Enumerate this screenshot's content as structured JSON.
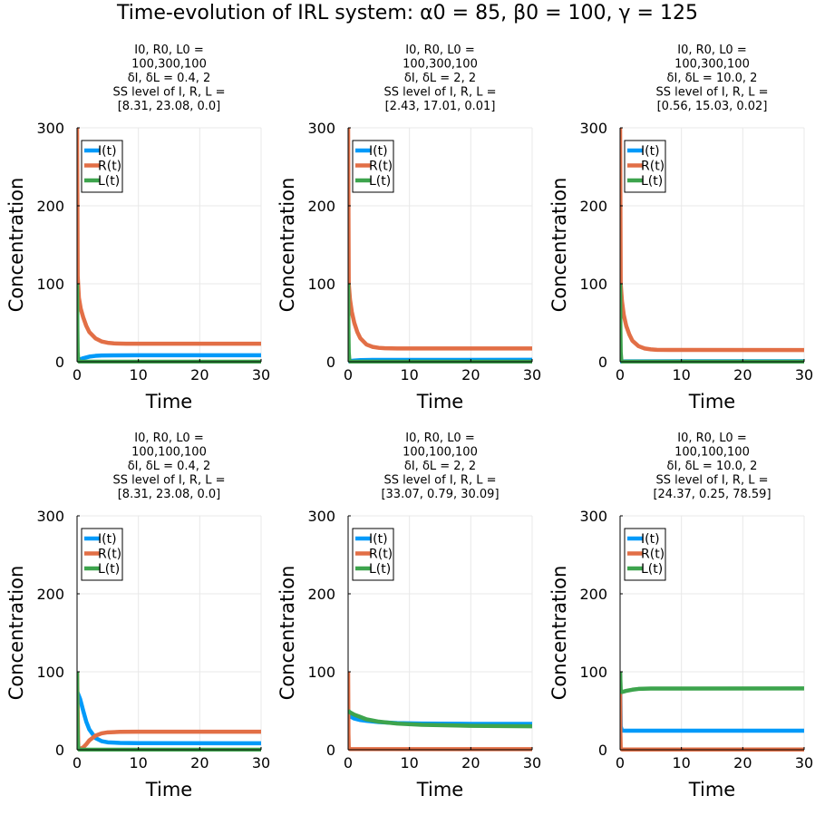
{
  "figure": {
    "title": "Time-evolution of IRL system: α0 = 85, β0 = 100, γ = 125"
  },
  "chart_data": [
    {
      "type": "line",
      "title_lines": [
        "I0, R0, L0 =",
        "100,300,100",
        "δI, δL = 0.4, 2",
        "SS level of I, R, L =",
        "[8.31, 23.08, 0.0]"
      ],
      "xlabel": "Time",
      "ylabel": "Concentration",
      "xlim": [
        0,
        30
      ],
      "ylim": [
        0,
        300
      ],
      "xticks": [
        0,
        10,
        20,
        30
      ],
      "yticks": [
        0,
        100,
        200,
        300
      ],
      "grid": true,
      "legend_position": "top-left",
      "series": [
        {
          "name": "I(t)",
          "color": "#009af9",
          "x": [
            0,
            0.2,
            0.5,
            1,
            2,
            3,
            4,
            6,
            10,
            30
          ],
          "y": [
            0,
            1.5,
            3,
            4.5,
            6.5,
            7.5,
            8,
            8.2,
            8.3,
            8.31
          ]
        },
        {
          "name": "R(t)",
          "color": "#e26f46",
          "x": [
            0,
            0.1,
            0.3,
            0.6,
            1,
            1.5,
            2,
            3,
            4,
            5,
            6,
            8,
            30
          ],
          "y": [
            300,
            110,
            82,
            68,
            57,
            46,
            38,
            30,
            26,
            24.3,
            23.5,
            23.1,
            23.08
          ]
        },
        {
          "name": "L(t)",
          "color": "#3da44d",
          "x": [
            0,
            0.05,
            0.1,
            0.2,
            0.4,
            30
          ],
          "y": [
            100,
            40,
            12,
            2,
            0,
            0
          ]
        }
      ]
    },
    {
      "type": "line",
      "title_lines": [
        "I0, R0, L0 =",
        "100,300,100",
        "δI, δL = 2, 2",
        "SS level of I, R, L =",
        "[2.43, 17.01, 0.01]"
      ],
      "xlabel": "Time",
      "ylabel": "Concentration",
      "xlim": [
        0,
        30
      ],
      "ylim": [
        0,
        300
      ],
      "xticks": [
        0,
        10,
        20,
        30
      ],
      "yticks": [
        0,
        100,
        200,
        300
      ],
      "grid": true,
      "legend_position": "top-left",
      "series": [
        {
          "name": "I(t)",
          "color": "#009af9",
          "x": [
            0,
            0.2,
            0.5,
            1,
            2,
            4,
            30
          ],
          "y": [
            0,
            0.5,
            1,
            1.5,
            2,
            2.3,
            2.43
          ]
        },
        {
          "name": "R(t)",
          "color": "#e26f46",
          "x": [
            0,
            0.1,
            0.3,
            0.6,
            1,
            1.5,
            2,
            3,
            4,
            5,
            6,
            8,
            30
          ],
          "y": [
            300,
            100,
            80,
            64,
            50,
            38,
            30,
            22,
            19,
            17.8,
            17.3,
            17.05,
            17.01
          ]
        },
        {
          "name": "L(t)",
          "color": "#3da44d",
          "x": [
            0,
            0.05,
            0.1,
            0.2,
            0.4,
            30
          ],
          "y": [
            100,
            40,
            12,
            2,
            0.01,
            0.01
          ]
        }
      ]
    },
    {
      "type": "line",
      "title_lines": [
        "I0, R0, L0 =",
        "100,300,100",
        "δI, δL = 10.0, 2",
        "SS level of I, R, L =",
        "[0.56, 15.03, 0.02]"
      ],
      "xlabel": "Time",
      "ylabel": "Concentration",
      "xlim": [
        0,
        30
      ],
      "ylim": [
        0,
        300
      ],
      "xticks": [
        0,
        10,
        20,
        30
      ],
      "yticks": [
        0,
        100,
        200,
        300
      ],
      "grid": true,
      "legend_position": "top-left",
      "series": [
        {
          "name": "I(t)",
          "color": "#009af9",
          "x": [
            0,
            0.3,
            1,
            30
          ],
          "y": [
            0,
            0.3,
            0.5,
            0.56
          ]
        },
        {
          "name": "R(t)",
          "color": "#e26f46",
          "x": [
            0,
            0.1,
            0.3,
            0.6,
            1,
            1.5,
            2,
            3,
            4,
            5,
            6,
            8,
            30
          ],
          "y": [
            300,
            100,
            78,
            60,
            46,
            35,
            27,
            20,
            17,
            15.8,
            15.3,
            15.05,
            15.03
          ]
        },
        {
          "name": "L(t)",
          "color": "#3da44d",
          "x": [
            0,
            0.05,
            0.1,
            0.2,
            0.4,
            30
          ],
          "y": [
            100,
            40,
            12,
            2,
            0.02,
            0.02
          ]
        }
      ]
    },
    {
      "type": "line",
      "title_lines": [
        "I0, R0, L0 =",
        "100,100,100",
        "δI, δL = 0.4, 2",
        "SS level of I, R, L =",
        "[8.31, 23.08, 0.0]"
      ],
      "xlabel": "Time",
      "ylabel": "Concentration",
      "xlim": [
        0,
        30
      ],
      "ylim": [
        0,
        300
      ],
      "xticks": [
        0,
        10,
        20,
        30
      ],
      "yticks": [
        0,
        100,
        200,
        300
      ],
      "grid": true,
      "legend_position": "top-left",
      "series": [
        {
          "name": "I(t)",
          "color": "#009af9",
          "x": [
            0,
            0.5,
            1,
            1.5,
            2,
            3,
            4,
            5,
            7,
            10,
            30
          ],
          "y": [
            75,
            65,
            50,
            36,
            26,
            15,
            11,
            9.5,
            8.7,
            8.4,
            8.31
          ]
        },
        {
          "name": "R(t)",
          "color": "#e26f46",
          "x": [
            0,
            0.2,
            0.5,
            1,
            1.5,
            2,
            3,
            4,
            5,
            7,
            10,
            30
          ],
          "y": [
            100,
            2,
            1,
            3,
            7,
            12,
            18,
            21,
            22.3,
            22.9,
            23.05,
            23.08
          ]
        },
        {
          "name": "L(t)",
          "color": "#3da44d",
          "x": [
            0,
            0.05,
            0.1,
            0.2,
            0.4,
            30
          ],
          "y": [
            100,
            40,
            12,
            2,
            0,
            0
          ]
        }
      ]
    },
    {
      "type": "line",
      "title_lines": [
        "I0, R0, L0 =",
        "100,100,100",
        "δI, δL = 2, 2",
        "SS level of I, R, L =",
        "[33.07, 0.79, 30.09]"
      ],
      "xlabel": "Time",
      "ylabel": "Concentration",
      "xlim": [
        0,
        30
      ],
      "ylim": [
        0,
        300
      ],
      "xticks": [
        0,
        10,
        20,
        30
      ],
      "yticks": [
        0,
        100,
        200,
        300
      ],
      "grid": true,
      "legend_position": "top-left",
      "series": [
        {
          "name": "I(t)",
          "color": "#009af9",
          "x": [
            0,
            0.3,
            1,
            2,
            3,
            5,
            8,
            12,
            20,
            30
          ],
          "y": [
            47,
            43,
            40,
            38,
            37,
            35.5,
            34.2,
            33.6,
            33.2,
            33.07
          ]
        },
        {
          "name": "R(t)",
          "color": "#e26f46",
          "x": [
            0,
            0.05,
            0.1,
            0.3,
            30
          ],
          "y": [
            100,
            20,
            3,
            0.8,
            0.79
          ]
        },
        {
          "name": "L(t)",
          "color": "#3da44d",
          "x": [
            0,
            0.3,
            1,
            2,
            3,
            5,
            8,
            12,
            20,
            30
          ],
          "y": [
            50,
            48,
            45,
            42,
            39,
            36,
            33.5,
            32,
            30.7,
            30.09
          ]
        }
      ]
    },
    {
      "type": "line",
      "title_lines": [
        "I0, R0, L0 =",
        "100,100,100",
        "δI, δL = 10.0, 2",
        "SS level of I, R, L =",
        "[24.37, 0.25, 78.59]"
      ],
      "xlabel": "Time",
      "ylabel": "Concentration",
      "xlim": [
        0,
        30
      ],
      "ylim": [
        0,
        300
      ],
      "xticks": [
        0,
        10,
        20,
        30
      ],
      "yticks": [
        0,
        100,
        200,
        300
      ],
      "grid": true,
      "legend_position": "top-left",
      "series": [
        {
          "name": "I(t)",
          "color": "#009af9",
          "x": [
            0,
            0.1,
            0.3,
            1,
            30
          ],
          "y": [
            100,
            30,
            24.5,
            24.4,
            24.37
          ]
        },
        {
          "name": "R(t)",
          "color": "#e26f46",
          "x": [
            0,
            0.05,
            0.1,
            0.3,
            30
          ],
          "y": [
            100,
            20,
            2,
            0.3,
            0.25
          ]
        },
        {
          "name": "L(t)",
          "color": "#3da44d",
          "x": [
            0,
            0.1,
            0.3,
            1,
            2,
            3,
            5,
            30
          ],
          "y": [
            100,
            76,
            74,
            75.5,
            77,
            78,
            78.5,
            78.59
          ]
        }
      ]
    }
  ]
}
